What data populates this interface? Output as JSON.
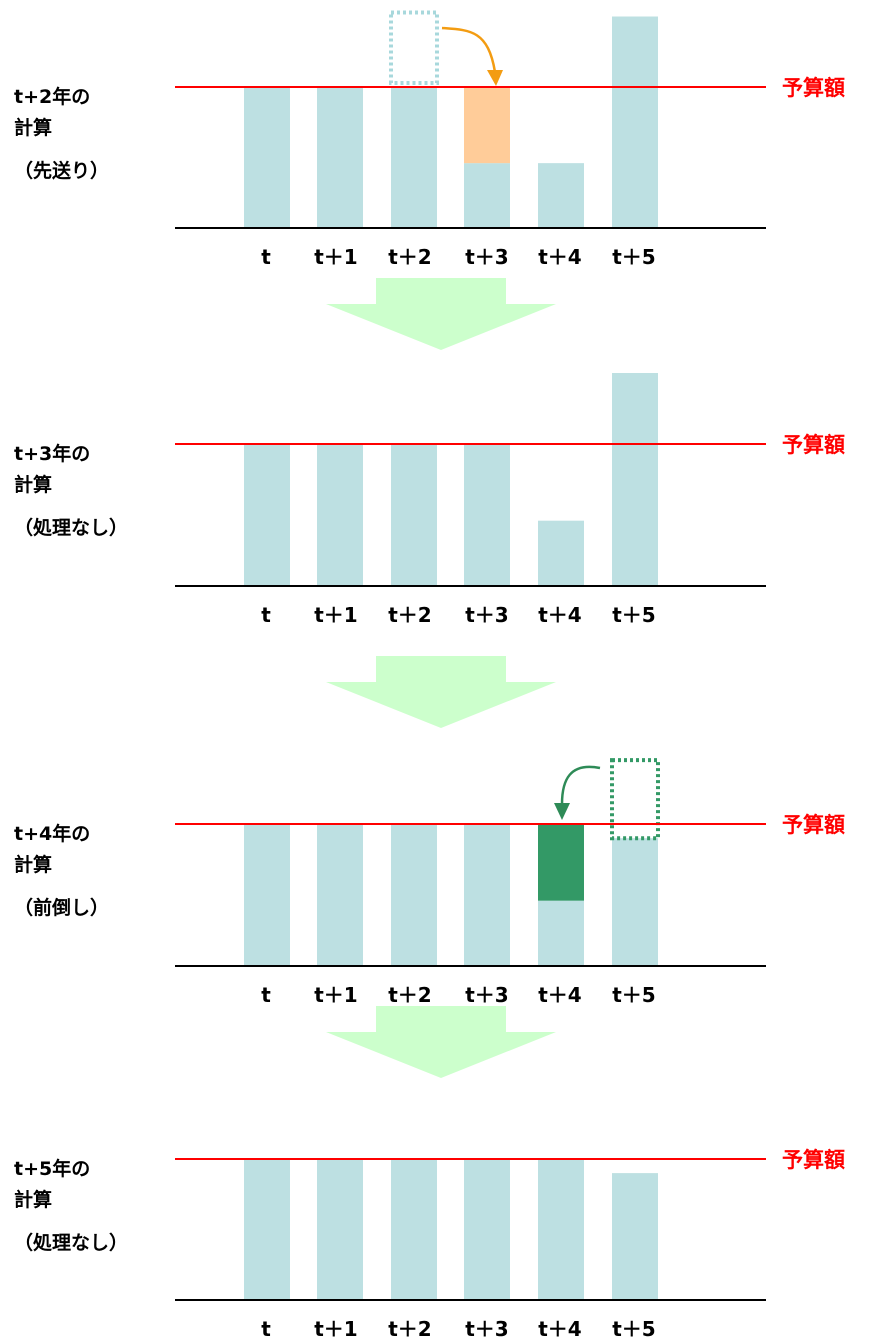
{
  "colors": {
    "bar": "#bde0e2",
    "budget_line": "#ff0000",
    "budget_text": "#ff0000",
    "axis": "#000000",
    "arrow_down": "#ccffcc",
    "deferred_fill": "#ffcc99",
    "deferred_arrow": "#f39c12",
    "advanced_fill": "#339966",
    "advanced_arrow": "#2e8b57",
    "ghost_deferred": "#a8d8dc",
    "ghost_advanced": "#339966"
  },
  "budget_label": "予算額",
  "categories": [
    "t",
    "t＋1",
    "t＋2",
    "t＋3",
    "t＋4",
    "t＋5"
  ],
  "panels": [
    {
      "id": "t2",
      "label": [
        "t+2年の",
        "計算",
        "（先送り）"
      ],
      "operation": "deferral",
      "bars": [
        1.0,
        1.0,
        1.0,
        0.46,
        0.46,
        1.5
      ],
      "highlight": {
        "index": 3,
        "from": 0.46,
        "to": 1.0,
        "type": "deferred"
      },
      "ghost": {
        "index": 2,
        "from": 1.0,
        "to": 1.5
      }
    },
    {
      "id": "t3",
      "label": [
        "t+3年の",
        "計算",
        "（処理なし）"
      ],
      "operation": "none",
      "bars": [
        1.0,
        1.0,
        1.0,
        1.0,
        0.46,
        1.5
      ]
    },
    {
      "id": "t4",
      "label": [
        "t+4年の",
        "計算",
        "（前倒し）"
      ],
      "operation": "advance",
      "bars": [
        1.0,
        1.0,
        1.0,
        1.0,
        0.46,
        0.9
      ],
      "highlight": {
        "index": 4,
        "from": 0.46,
        "to": 1.0,
        "type": "advanced"
      },
      "ghost": {
        "index": 5,
        "from": 0.9,
        "to": 1.45
      }
    },
    {
      "id": "t5",
      "label": [
        "t+5年の",
        "計算",
        "（処理なし）"
      ],
      "operation": "none",
      "bars": [
        1.0,
        1.0,
        1.0,
        1.0,
        1.0,
        0.9
      ]
    }
  ]
}
